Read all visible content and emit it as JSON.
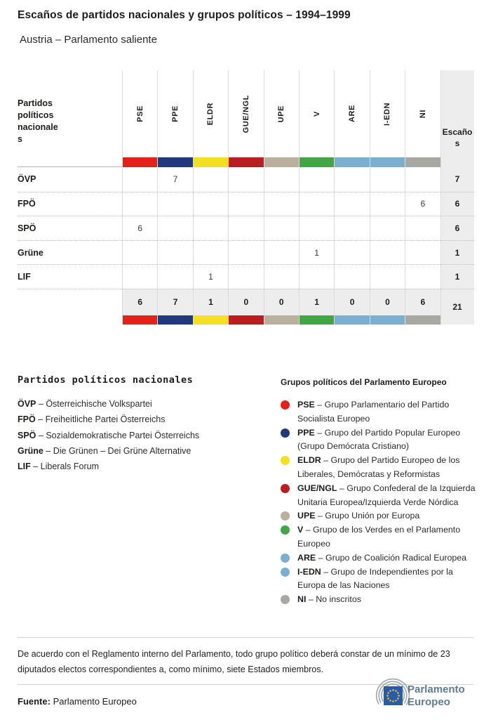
{
  "header": {
    "title": "Escaños de partidos nacionales y grupos políticos – 1994–1999",
    "subtitle": "Austria – Parlamento saliente"
  },
  "groups": [
    {
      "id": "PSE",
      "color": "#e3201b",
      "description": "Grupo Parlamentario del Partido Socialista Europeo"
    },
    {
      "id": "PPE",
      "color": "#21387b",
      "description": "Grupo del Partido Popular Europeo (Grupo Demócrata Cristiano)"
    },
    {
      "id": "ELDR",
      "color": "#f3e024",
      "description": "Grupo del Partido Europeo de los Liberales, Demócratas y Reformistas"
    },
    {
      "id": "GUE/NGL",
      "color": "#ba1e22",
      "description": "Grupo Confederal de la Izquierda Unitaria Europea/Izquierda Verde Nórdica"
    },
    {
      "id": "UPE",
      "color": "#b9b09e",
      "description": "Grupo Unión por Europa"
    },
    {
      "id": "V",
      "color": "#43a547",
      "description": "Grupo de los Verdes en el Parlamento Europeo"
    },
    {
      "id": "ARE",
      "color": "#7caed0",
      "description": "Grupo de Coalición Radical Europea"
    },
    {
      "id": "I-EDN",
      "color": "#7caed0",
      "description": "Grupo de Independientes por la Europa de las Naciones"
    },
    {
      "id": "NI",
      "color": "#a8a8a3",
      "description": "No inscritos"
    }
  ],
  "table": {
    "corner_label": "Partidos políticos nacionales",
    "seats_label": "Escaños",
    "rows": [
      {
        "party": "ÖVP",
        "seats_by_group": {
          "PPE": 7
        },
        "total": 7
      },
      {
        "party": "FPÖ",
        "seats_by_group": {
          "NI": 6
        },
        "total": 6
      },
      {
        "party": "SPÖ",
        "seats_by_group": {
          "PSE": 6
        },
        "total": 6
      },
      {
        "party": "Grüne",
        "seats_by_group": {
          "V": 1
        },
        "total": 1
      },
      {
        "party": "LIF",
        "seats_by_group": {
          "ELDR": 1
        },
        "total": 1
      }
    ],
    "totals": {
      "by_group": {
        "PSE": 6,
        "PPE": 7,
        "ELDR": 1,
        "GUE/NGL": 0,
        "UPE": 0,
        "V": 1,
        "ARE": 0,
        "I-EDN": 0,
        "NI": 6
      },
      "total": 21
    }
  },
  "chart_data": {
    "type": "table",
    "title": "Escaños de partidos nacionales y grupos políticos – 1994–1999",
    "subtitle": "Austria – Parlamento saliente",
    "columns": [
      "PSE",
      "PPE",
      "ELDR",
      "GUE/NGL",
      "UPE",
      "V",
      "ARE",
      "I-EDN",
      "NI",
      "Escaños"
    ],
    "rows": [
      {
        "party": "ÖVP",
        "values": [
          null,
          7,
          null,
          null,
          null,
          null,
          null,
          null,
          null
        ],
        "total": 7
      },
      {
        "party": "FPÖ",
        "values": [
          null,
          null,
          null,
          null,
          null,
          null,
          null,
          null,
          6
        ],
        "total": 6
      },
      {
        "party": "SPÖ",
        "values": [
          6,
          null,
          null,
          null,
          null,
          null,
          null,
          null,
          null
        ],
        "total": 6
      },
      {
        "party": "Grüne",
        "values": [
          null,
          null,
          null,
          null,
          null,
          1,
          null,
          null,
          null
        ],
        "total": 1
      },
      {
        "party": "LIF",
        "values": [
          null,
          null,
          1,
          null,
          null,
          null,
          null,
          null,
          null
        ],
        "total": 1
      }
    ],
    "column_totals": [
      6,
      7,
      1,
      0,
      0,
      1,
      0,
      0,
      6
    ],
    "grand_total": 21
  },
  "party_legend": {
    "title": "Partidos políticos nacionales",
    "items": [
      {
        "abbr": "ÖVP",
        "name": "Österreichische Volkspartei"
      },
      {
        "abbr": "FPÖ",
        "name": "Freiheitliche Partei Österreichs"
      },
      {
        "abbr": "SPÖ",
        "name": "Sozialdemokratische Partei Österreichs"
      },
      {
        "abbr": "Grüne",
        "name": "Die Grünen – Dei Grüne Alternative"
      },
      {
        "abbr": "LIF",
        "name": "Liberals Forum"
      }
    ]
  },
  "group_legend": {
    "title": "Grupos políticos del Parlamento Europeo"
  },
  "footer": {
    "note": "De acuerdo con el Reglamento interno del Parlamento, todo grupo político deberá constar de un mínimo de 23 diputados electos correspondientes a, como mínimo, siete Estados miembros.",
    "source_label": "Fuente:",
    "source": "Parlamento Europeo",
    "logo_line1": "Parlamento",
    "logo_line2": "Europeo",
    "logo_text_color": "#5f7d8c",
    "logo_flag_color": "#2b5ba8",
    "logo_star_color": "#ffd617"
  }
}
